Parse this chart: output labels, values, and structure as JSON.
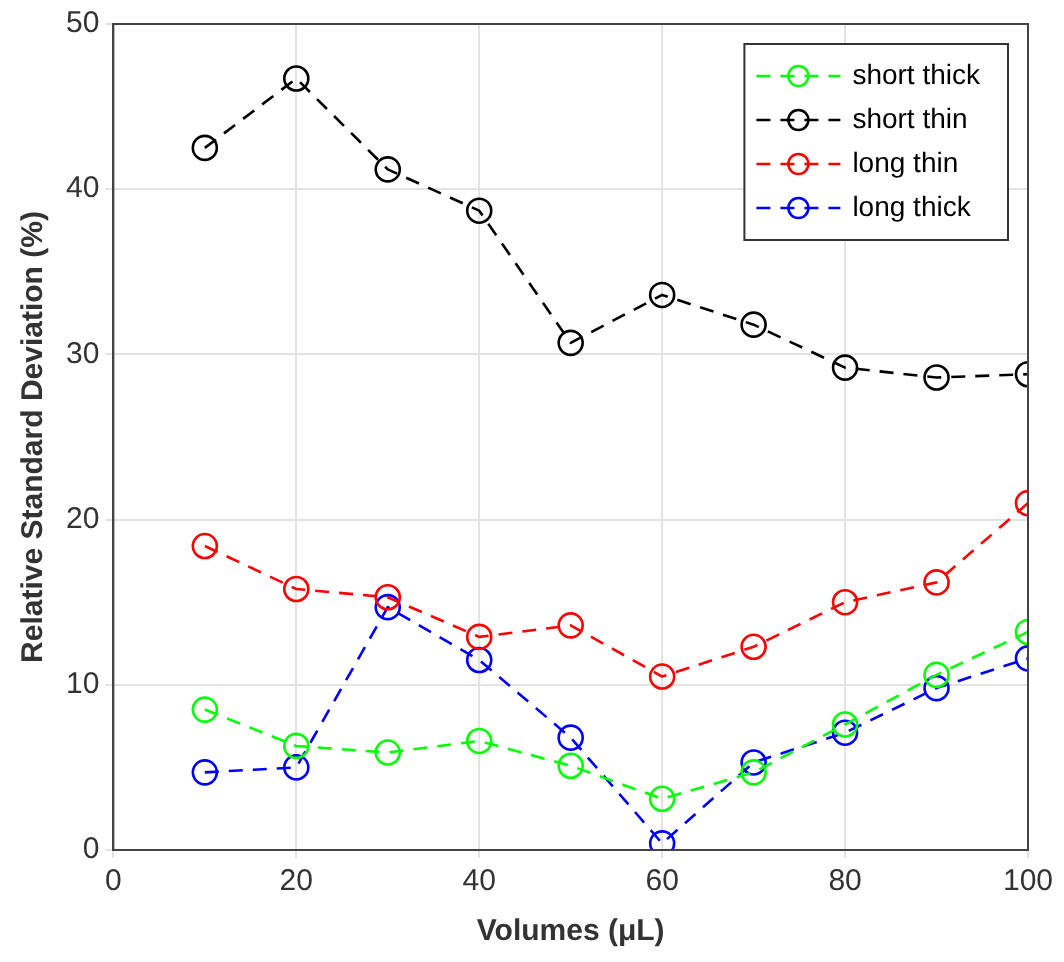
{
  "chart_data": {
    "type": "line",
    "xlabel": "Volumes (μL)",
    "ylabel": "Relative Standard Deviation (%)",
    "x": [
      10,
      20,
      30,
      40,
      50,
      60,
      70,
      80,
      90,
      100
    ],
    "xlim": [
      0,
      100
    ],
    "xticks": [
      0,
      20,
      40,
      60,
      80,
      100
    ],
    "ylim": [
      0,
      50
    ],
    "yticks": [
      0,
      10,
      20,
      30,
      40,
      50
    ],
    "grid": true,
    "legend": "top right",
    "marker": "circle",
    "line_style": "dashed",
    "series": [
      {
        "name": "short thick",
        "color": "#00ff00",
        "values": [
          8.5,
          6.3,
          5.9,
          6.6,
          5.1,
          3.1,
          4.7,
          7.6,
          10.6,
          13.2
        ]
      },
      {
        "name": "short thin",
        "color": "#000000",
        "values": [
          42.5,
          46.7,
          41.2,
          38.7,
          30.7,
          33.6,
          31.8,
          29.2,
          28.6,
          28.8
        ]
      },
      {
        "name": "long thin",
        "color": "#ff0000",
        "values": [
          18.4,
          15.8,
          15.3,
          12.9,
          13.6,
          10.5,
          12.3,
          15.0,
          16.2,
          21.0
        ]
      },
      {
        "name": "long thick",
        "color": "#0000ff",
        "values": [
          4.7,
          5.0,
          14.7,
          11.5,
          6.8,
          0.4,
          5.3,
          7.1,
          9.8,
          11.6
        ]
      }
    ]
  }
}
